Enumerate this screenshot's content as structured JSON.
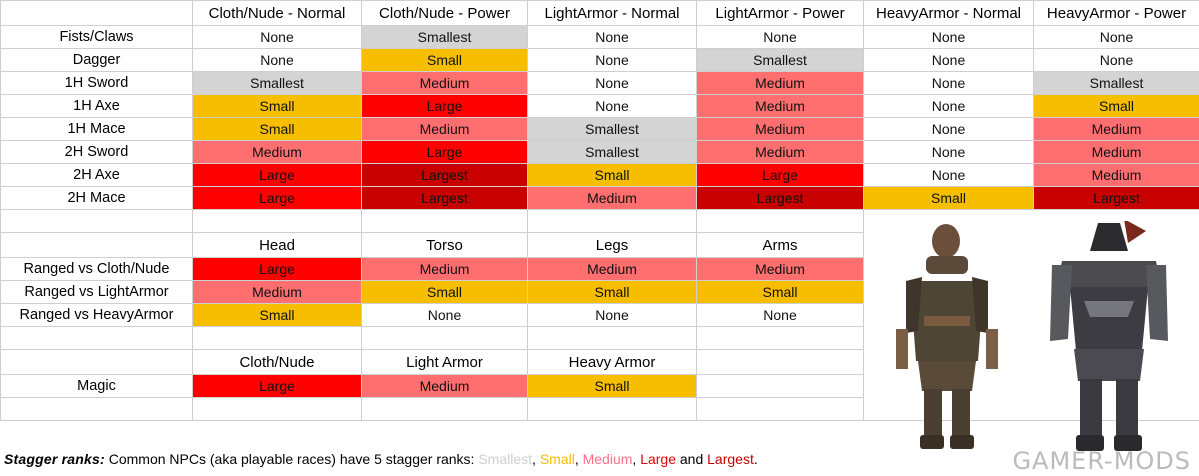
{
  "melee": {
    "columns": [
      "Cloth/Nude - Normal",
      "Cloth/Nude - Power",
      "LightArmor - Normal",
      "LightArmor - Power",
      "HeavyArmor - Normal",
      "HeavyArmor - Power"
    ],
    "rows": [
      {
        "label": "Fists/Claws",
        "cells": [
          "None",
          "Smallest",
          "None",
          "None",
          "None",
          "None"
        ]
      },
      {
        "label": "Dagger",
        "cells": [
          "None",
          "Small",
          "None",
          "Smallest",
          "None",
          "None"
        ]
      },
      {
        "label": "1H Sword",
        "cells": [
          "Smallest",
          "Medium",
          "None",
          "Medium",
          "None",
          "Smallest"
        ]
      },
      {
        "label": "1H Axe",
        "cells": [
          "Small",
          "Large",
          "None",
          "Medium",
          "None",
          "Small"
        ]
      },
      {
        "label": "1H Mace",
        "cells": [
          "Small",
          "Medium",
          "Smallest",
          "Medium",
          "None",
          "Medium"
        ]
      },
      {
        "label": "2H Sword",
        "cells": [
          "Medium",
          "Large",
          "Smallest",
          "Medium",
          "None",
          "Medium"
        ]
      },
      {
        "label": "2H Axe",
        "cells": [
          "Large",
          "Largest",
          "Small",
          "Large",
          "None",
          "Medium"
        ]
      },
      {
        "label": "2H Mace",
        "cells": [
          "Large",
          "Largest",
          "Medium",
          "Largest",
          "Small",
          "Largest"
        ]
      }
    ]
  },
  "ranged": {
    "columns": [
      "Head",
      "Torso",
      "Legs",
      "Arms"
    ],
    "rows": [
      {
        "label": "Ranged vs Cloth/Nude",
        "cells": [
          "Large",
          "Medium",
          "Medium",
          "Medium"
        ]
      },
      {
        "label": "Ranged vs LightArmor",
        "cells": [
          "Medium",
          "Small",
          "Small",
          "Small"
        ]
      },
      {
        "label": "Ranged vs HeavyArmor",
        "cells": [
          "Small",
          "None",
          "None",
          "None"
        ]
      }
    ]
  },
  "magic": {
    "columns": [
      "Cloth/Nude",
      "Light Armor",
      "Heavy Armor"
    ],
    "rows": [
      {
        "label": "Magic",
        "cells": [
          "Large",
          "Medium",
          "Small"
        ]
      }
    ]
  },
  "footer": {
    "title": "Stagger ranks:",
    "text": " Common NPCs (aka playable races) have 5 stagger ranks: ",
    "ranks": [
      "Smallest",
      "Small",
      "Medium",
      "Large",
      "Largest"
    ],
    "sep1": ", ",
    "sep_and": " and ",
    "end": "."
  },
  "watermark": "GAMER-MODS",
  "colors": {
    "None": "#ffffff",
    "Smallest": "#d4d4d4",
    "Small": "#f7be00",
    "Medium": "#ff6f6f",
    "Large": "#ff0000",
    "Largest": "#c80000"
  },
  "figures": [
    "leather-armored-npc-figure",
    "heavy-armored-npc-figure"
  ]
}
